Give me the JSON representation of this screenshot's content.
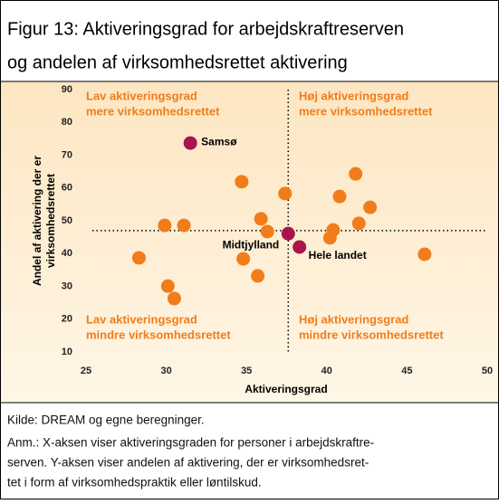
{
  "chart_data": {
    "type": "scatter",
    "title_lines": [
      "Figur 13: Aktiveringsgrad for arbejdskraftreserven",
      "og andelen af virksomhedsrettet aktivering"
    ],
    "x_label": "Aktiveringsgrad",
    "y_label_lines": [
      "Andel af aktivering der er",
      "virksomhedsrettet"
    ],
    "xlim": [
      25,
      50
    ],
    "xticks": [
      25,
      30,
      35,
      40,
      45,
      50
    ],
    "ylim": [
      10,
      90
    ],
    "yticks": [
      10,
      20,
      30,
      40,
      50,
      60,
      70,
      80,
      90
    ],
    "reference_x": 37.6,
    "reference_y": 47,
    "quadrant_labels": {
      "top_left": [
        "Lav aktiveringsgrad",
        "mere virksomhedsrettet"
      ],
      "top_right": [
        "Høj aktiveringsgrad",
        "mere virksomhedsrettet"
      ],
      "bottom_left": [
        "Lav aktiveringsgrad",
        "mindre virksomhedsrettet"
      ],
      "bottom_right": [
        "Høj aktiveringsgrad",
        "mindre virksomhedsrettet"
      ]
    },
    "quadrant_color": "#f07d1a",
    "series": [
      {
        "color": "#f07d1a",
        "x": [
          28.3,
          29.9,
          31.1,
          30.1,
          30.5,
          34.7,
          34.8,
          35.7,
          35.9,
          36.3,
          37.4,
          40.2,
          40.4,
          42.0,
          42.7,
          40.8,
          41.8,
          46.1
        ],
        "y": [
          38.7,
          48.6,
          48.6,
          30.1,
          26.3,
          61.9,
          38.4,
          33.2,
          50.6,
          46.7,
          58.3,
          44.8,
          47.2,
          49.2,
          54.1,
          57.4,
          64.3,
          39.8
        ]
      },
      {
        "color": "#a8154a",
        "x": [
          31.5,
          37.6,
          38.3
        ],
        "y": [
          73.7,
          46.1,
          42.0
        ],
        "labels": [
          "Samsø",
          "Midtjylland",
          "Hele landet"
        ]
      }
    ],
    "source": "Kilde: DREAM og egne beregninger.",
    "note_lines": [
      "Anm.: X-aksen viser aktiveringsgraden for personer i arbejdskraftre-",
      "serven. Y-aksen viser andelen af aktivering, der er virksomhedsret-",
      "tet i form af virksomhedspraktik eller løntilskud."
    ]
  }
}
